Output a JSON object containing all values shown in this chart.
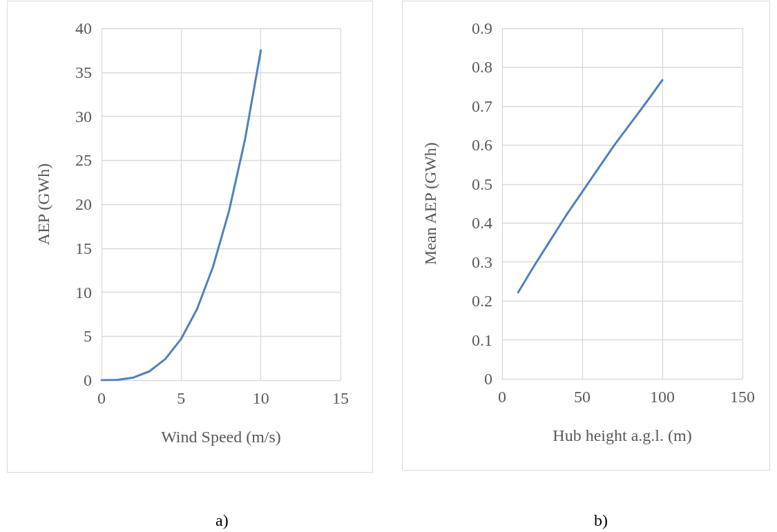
{
  "chart_data": [
    {
      "type": "line",
      "xlabel": "Wind Speed (m/s)",
      "ylabel": "AEP (GWh)",
      "annotations": [
        "a)"
      ],
      "series": [
        {
          "color": "#4f81bd",
          "x": [
            0,
            1,
            2,
            3,
            4,
            5,
            6,
            7,
            8,
            9,
            10
          ],
          "values": [
            0,
            0.04,
            0.3,
            1.0,
            2.4,
            4.7,
            8.1,
            12.9,
            19.2,
            27.3,
            37.5
          ]
        }
      ],
      "xlim": [
        0,
        15
      ],
      "xticks": [
        0,
        5,
        10,
        15
      ],
      "ylim": [
        0,
        40
      ],
      "yticks": [
        0,
        5,
        10,
        15,
        20,
        25,
        30,
        35,
        40
      ],
      "grid": true,
      "marker": "none",
      "line_style": "solid"
    },
    {
      "type": "line",
      "xlabel": "Hub height a.g.l. (m)",
      "ylabel": "Mean AEP (GWh)",
      "annotations": [
        "b)"
      ],
      "series": [
        {
          "color": "#4f81bd",
          "x": [
            10,
            20,
            30,
            40,
            50,
            60,
            70,
            80,
            90,
            100
          ],
          "values": [
            0.222,
            0.29,
            0.355,
            0.42,
            0.48,
            0.54,
            0.6,
            0.655,
            0.71,
            0.767
          ]
        }
      ],
      "xlim": [
        0,
        150
      ],
      "xticks": [
        0,
        50,
        100,
        150
      ],
      "ylim": [
        0,
        0.9
      ],
      "yticks": [
        0,
        0.1,
        0.2,
        0.3,
        0.4,
        0.5,
        0.6,
        0.7,
        0.8,
        0.9
      ],
      "grid": true,
      "marker": "none",
      "line_style": "solid"
    }
  ]
}
